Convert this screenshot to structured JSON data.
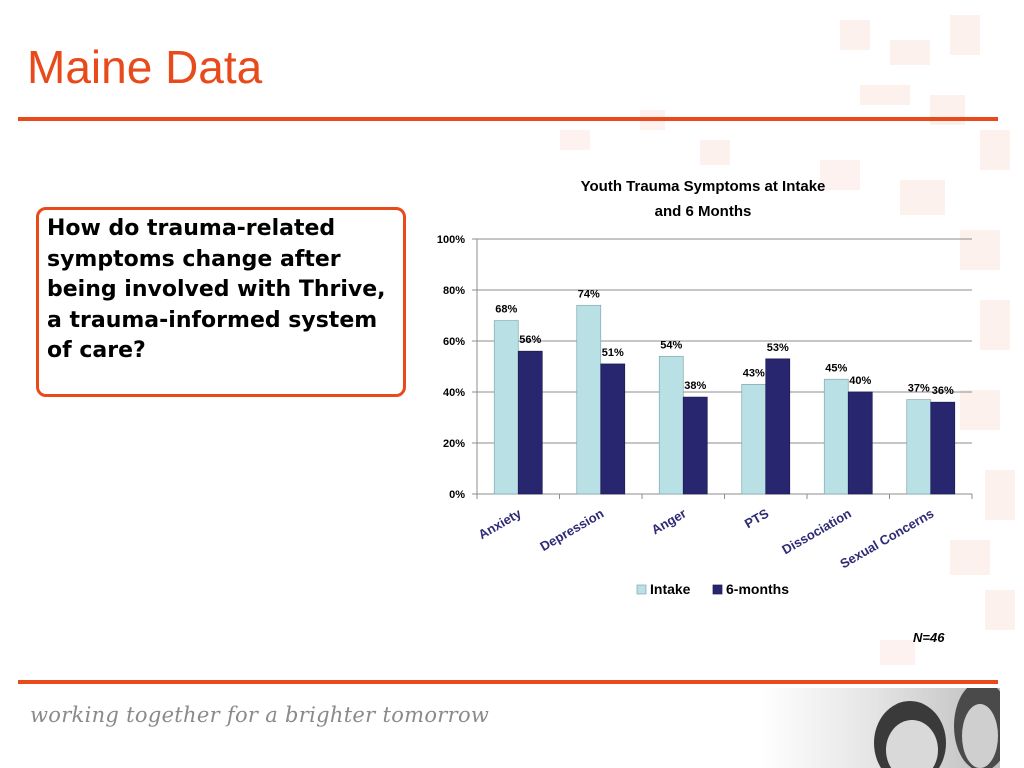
{
  "slide": {
    "title": "Maine Data",
    "question": "How do trauma-related symptoms change after being involved with Thrive, a trauma-informed system of care?",
    "sample_size": "N=46",
    "tagline": "working together for a brighter tomorrow"
  },
  "colors": {
    "accent": "#e84a1b",
    "intake": "#b9e0e4",
    "six_months": "#27266f"
  },
  "chart_data": {
    "type": "bar",
    "title_lines": [
      "Youth Trauma Symptoms at Intake",
      "and 6 Months"
    ],
    "categories": [
      "Anxiety",
      "Depression",
      "Anger",
      "PTS",
      "Dissociation",
      "Sexual Concerns"
    ],
    "series": [
      {
        "name": "Intake",
        "values": [
          68,
          74,
          54,
          43,
          45,
          37
        ]
      },
      {
        "name": "6-months",
        "values": [
          56,
          51,
          38,
          53,
          40,
          36
        ]
      }
    ],
    "data_labels": [
      [
        "68%",
        "74%",
        "54%",
        "43%",
        "45%",
        "37%"
      ],
      [
        "56%",
        "51%",
        "38%",
        "53%",
        "40%",
        "36%"
      ]
    ],
    "y_ticks": [
      "0%",
      "20%",
      "40%",
      "60%",
      "80%",
      "100%"
    ],
    "ylim": [
      0,
      100
    ],
    "grid": true,
    "legend_position": "bottom"
  }
}
